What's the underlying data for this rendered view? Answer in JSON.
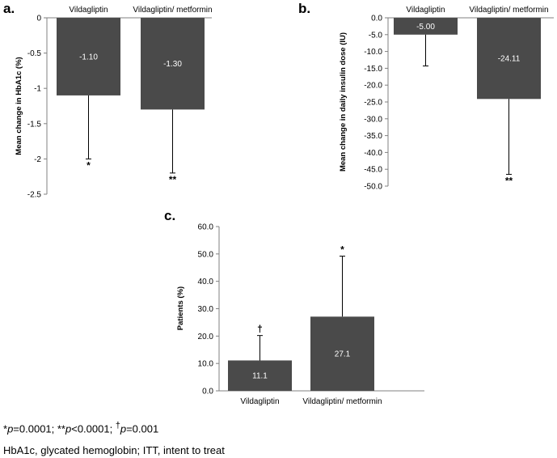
{
  "colors": {
    "bar": "#4a4a4a",
    "axis": "#808080",
    "text_on_bar": "#ffffff"
  },
  "footnotes": {
    "sig1_mark": "*",
    "sig1_p": "p",
    "sig1_val": "=0.0001; ",
    "sig2_mark": "**",
    "sig2_p": "p",
    "sig2_val": "<0.0001; ",
    "sig3_mark": "†",
    "sig3_p": "p",
    "sig3_val": "=0.001",
    "abbrev": "HbA1c, glycated hemoglobin; ITT, intent to treat"
  },
  "chart_data": [
    {
      "panel": "a.",
      "type": "bar",
      "ylabel": "Mean change in HbA1c (%)",
      "categories": [
        "Vildagliptin",
        "Vildagliptin/ metformin"
      ],
      "values": [
        -1.1,
        -1.3
      ],
      "value_labels": [
        "-1.10",
        "-1.30"
      ],
      "error_bar_ends": [
        -2.0,
        -2.2
      ],
      "significance": [
        "*",
        "**"
      ],
      "ylim": [
        -2.5,
        0
      ],
      "yticks": [
        0,
        -0.5,
        -1,
        -1.5,
        -2,
        -2.5
      ],
      "ytick_labels": [
        "0",
        "-0.5",
        "-1",
        "-1.5",
        "-2",
        "-2.5"
      ],
      "category_axis_position": "top",
      "grid": false
    },
    {
      "panel": "b.",
      "type": "bar",
      "ylabel": "Mean change in daily insulin dose (IU)",
      "categories": [
        "Vildagliptin",
        "Vildagliptin/ metformin"
      ],
      "values": [
        -5.0,
        -24.11
      ],
      "value_labels": [
        "-5.00",
        "-24.11"
      ],
      "error_bar_ends": [
        -14.3,
        -46.5
      ],
      "significance": [
        "",
        "**"
      ],
      "ylim": [
        -50.0,
        0.0
      ],
      "yticks": [
        0,
        -5,
        -10,
        -15,
        -20,
        -25,
        -30,
        -35,
        -40,
        -45,
        -50
      ],
      "ytick_labels": [
        "0.0",
        "-5.0",
        "-10.0",
        "-15.0",
        "-20.0",
        "-25.0",
        "-30.0",
        "-35.0",
        "-40.0",
        "-45.0",
        "-50.0"
      ],
      "category_axis_position": "top",
      "grid": false
    },
    {
      "panel": "c.",
      "type": "bar",
      "ylabel": "Patients (%)",
      "categories": [
        "Vildagliptin",
        "Vildagliptin/ metformin"
      ],
      "values": [
        11.1,
        27.1
      ],
      "value_labels": [
        "11.1",
        "27.1"
      ],
      "error_bar_ends": [
        20.2,
        49.2
      ],
      "significance": [
        "†",
        "*"
      ],
      "ylim": [
        0.0,
        60.0
      ],
      "yticks": [
        0,
        10,
        20,
        30,
        40,
        50,
        60
      ],
      "ytick_labels": [
        "0.0",
        "10.0",
        "20.0",
        "30.0",
        "40.0",
        "50.0",
        "60.0"
      ],
      "category_axis_position": "bottom",
      "grid": false
    }
  ]
}
